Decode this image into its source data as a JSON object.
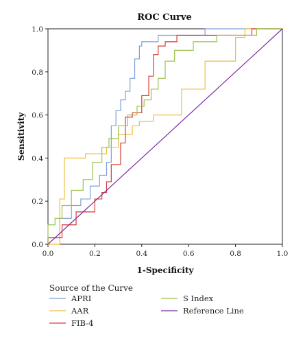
{
  "chart_data": {
    "type": "line",
    "title": "ROC Curve",
    "xlabel": "1-Specificity",
    "ylabel": "Sensitivity",
    "xlim": [
      0,
      1
    ],
    "ylim": [
      0,
      1
    ],
    "xticks": [
      "0.0",
      "0.2",
      "0.4",
      "0.6",
      "0.8",
      "1.0"
    ],
    "yticks": [
      "0.0",
      "0.2",
      "0.4",
      "0.6",
      "0.8",
      "1.0"
    ],
    "grid": false,
    "legend_title": "Source of the Curve",
    "legend_placement": "bottom",
    "series": [
      {
        "name": "APRI",
        "color": "#7f9fd8",
        "points": [
          [
            0,
            0
          ],
          [
            0,
            0.03
          ],
          [
            0.05,
            0.03
          ],
          [
            0.05,
            0.12
          ],
          [
            0.1,
            0.12
          ],
          [
            0.1,
            0.18
          ],
          [
            0.14,
            0.18
          ],
          [
            0.14,
            0.21
          ],
          [
            0.18,
            0.21
          ],
          [
            0.18,
            0.27
          ],
          [
            0.22,
            0.27
          ],
          [
            0.22,
            0.32
          ],
          [
            0.25,
            0.32
          ],
          [
            0.25,
            0.38
          ],
          [
            0.27,
            0.38
          ],
          [
            0.27,
            0.55
          ],
          [
            0.29,
            0.55
          ],
          [
            0.29,
            0.62
          ],
          [
            0.31,
            0.62
          ],
          [
            0.31,
            0.67
          ],
          [
            0.33,
            0.67
          ],
          [
            0.33,
            0.71
          ],
          [
            0.35,
            0.71
          ],
          [
            0.35,
            0.77
          ],
          [
            0.37,
            0.77
          ],
          [
            0.37,
            0.86
          ],
          [
            0.39,
            0.86
          ],
          [
            0.39,
            0.92
          ],
          [
            0.4,
            0.92
          ],
          [
            0.4,
            0.94
          ],
          [
            0.47,
            0.94
          ],
          [
            0.47,
            0.97
          ],
          [
            0.67,
            0.97
          ],
          [
            0.67,
            1.0
          ],
          [
            1.0,
            1.0
          ]
        ]
      },
      {
        "name": "AAR",
        "color": "#f2bc3c",
        "points": [
          [
            0,
            0
          ],
          [
            0.05,
            0
          ],
          [
            0.05,
            0.21
          ],
          [
            0.07,
            0.21
          ],
          [
            0.07,
            0.4
          ],
          [
            0.16,
            0.4
          ],
          [
            0.16,
            0.42
          ],
          [
            0.25,
            0.42
          ],
          [
            0.25,
            0.45
          ],
          [
            0.3,
            0.45
          ],
          [
            0.3,
            0.51
          ],
          [
            0.36,
            0.51
          ],
          [
            0.36,
            0.55
          ],
          [
            0.39,
            0.55
          ],
          [
            0.39,
            0.57
          ],
          [
            0.45,
            0.57
          ],
          [
            0.45,
            0.6
          ],
          [
            0.57,
            0.6
          ],
          [
            0.57,
            0.72
          ],
          [
            0.67,
            0.72
          ],
          [
            0.67,
            0.85
          ],
          [
            0.8,
            0.85
          ],
          [
            0.8,
            0.96
          ],
          [
            0.84,
            0.96
          ],
          [
            0.84,
            1.0
          ],
          [
            1.0,
            1.0
          ]
        ]
      },
      {
        "name": "FIB-4",
        "color": "#d63a35",
        "points": [
          [
            0,
            0
          ],
          [
            0,
            0.03
          ],
          [
            0.06,
            0.03
          ],
          [
            0.06,
            0.09
          ],
          [
            0.12,
            0.09
          ],
          [
            0.12,
            0.15
          ],
          [
            0.2,
            0.15
          ],
          [
            0.2,
            0.21
          ],
          [
            0.23,
            0.21
          ],
          [
            0.23,
            0.24
          ],
          [
            0.25,
            0.24
          ],
          [
            0.25,
            0.29
          ],
          [
            0.27,
            0.29
          ],
          [
            0.27,
            0.37
          ],
          [
            0.31,
            0.37
          ],
          [
            0.31,
            0.47
          ],
          [
            0.33,
            0.47
          ],
          [
            0.33,
            0.59
          ],
          [
            0.36,
            0.59
          ],
          [
            0.36,
            0.61
          ],
          [
            0.4,
            0.61
          ],
          [
            0.4,
            0.69
          ],
          [
            0.43,
            0.69
          ],
          [
            0.43,
            0.78
          ],
          [
            0.45,
            0.78
          ],
          [
            0.45,
            0.88
          ],
          [
            0.47,
            0.88
          ],
          [
            0.47,
            0.92
          ],
          [
            0.5,
            0.92
          ],
          [
            0.5,
            0.94
          ],
          [
            0.55,
            0.94
          ],
          [
            0.55,
            0.97
          ],
          [
            0.87,
            0.97
          ],
          [
            0.87,
            1.0
          ],
          [
            1.0,
            1.0
          ]
        ]
      },
      {
        "name": "S Index",
        "color": "#9bc24a",
        "points": [
          [
            0,
            0
          ],
          [
            0,
            0.09
          ],
          [
            0.03,
            0.09
          ],
          [
            0.03,
            0.12
          ],
          [
            0.06,
            0.12
          ],
          [
            0.06,
            0.18
          ],
          [
            0.1,
            0.18
          ],
          [
            0.1,
            0.25
          ],
          [
            0.15,
            0.25
          ],
          [
            0.15,
            0.3
          ],
          [
            0.19,
            0.3
          ],
          [
            0.19,
            0.38
          ],
          [
            0.23,
            0.38
          ],
          [
            0.23,
            0.45
          ],
          [
            0.26,
            0.45
          ],
          [
            0.26,
            0.49
          ],
          [
            0.3,
            0.49
          ],
          [
            0.3,
            0.55
          ],
          [
            0.34,
            0.55
          ],
          [
            0.34,
            0.6
          ],
          [
            0.38,
            0.6
          ],
          [
            0.38,
            0.64
          ],
          [
            0.41,
            0.64
          ],
          [
            0.41,
            0.67
          ],
          [
            0.44,
            0.67
          ],
          [
            0.44,
            0.72
          ],
          [
            0.47,
            0.72
          ],
          [
            0.47,
            0.77
          ],
          [
            0.5,
            0.77
          ],
          [
            0.5,
            0.85
          ],
          [
            0.54,
            0.85
          ],
          [
            0.54,
            0.9
          ],
          [
            0.62,
            0.9
          ],
          [
            0.62,
            0.94
          ],
          [
            0.72,
            0.94
          ],
          [
            0.72,
            0.97
          ],
          [
            0.89,
            0.97
          ],
          [
            0.89,
            1.0
          ],
          [
            1.0,
            1.0
          ]
        ]
      },
      {
        "name": "Reference Line",
        "color": "#7b2c9b",
        "points": [
          [
            0,
            0
          ],
          [
            1,
            1
          ]
        ]
      }
    ]
  }
}
